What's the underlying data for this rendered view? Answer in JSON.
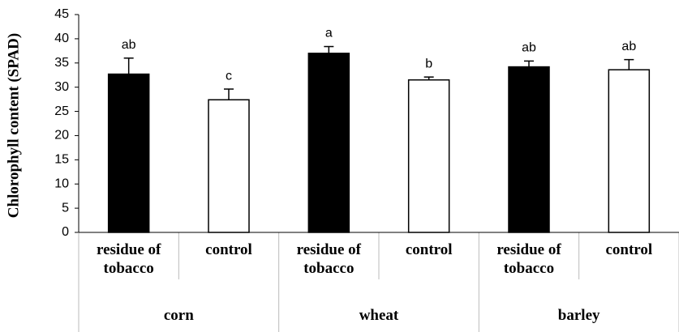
{
  "chart_data": {
    "type": "bar",
    "ylabel": "Chlorophyll content (SPAD)",
    "categories": [
      "residue of tobacco",
      "control",
      "residue of tobacco",
      "control",
      "residue of tobacco",
      "control"
    ],
    "groups": [
      "corn",
      "wheat",
      "barley"
    ],
    "values": [
      32.7,
      27.4,
      37.0,
      31.5,
      34.2,
      33.6
    ],
    "errors": [
      3.3,
      2.2,
      1.4,
      0.6,
      1.2,
      2.1
    ],
    "annotations": [
      "ab",
      "c",
      "a",
      "b",
      "ab",
      "ab"
    ],
    "colors": [
      "#000000",
      "#ffffff",
      "#000000",
      "#ffffff",
      "#000000",
      "#ffffff"
    ],
    "ylim": [
      0,
      45
    ],
    "yticks": [
      0,
      5,
      10,
      15,
      20,
      25,
      30,
      35,
      40,
      45
    ]
  }
}
